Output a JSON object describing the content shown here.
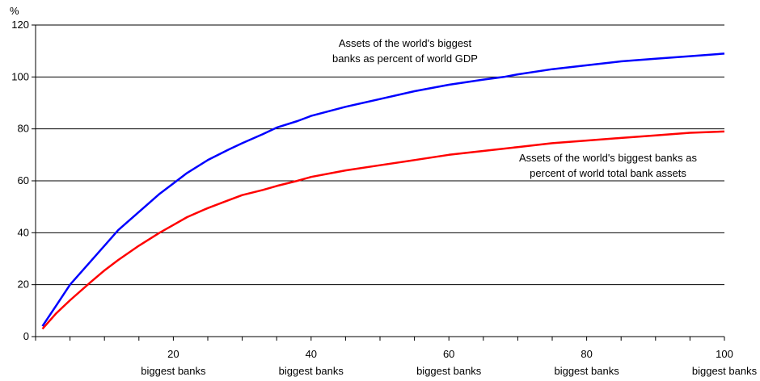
{
  "chart_data": {
    "type": "line",
    "title": "",
    "xlabel": "",
    "ylabel": "%",
    "xlim": [
      0,
      100
    ],
    "ylim": [
      0,
      120
    ],
    "grid": "horizontal",
    "legend": "inline annotations",
    "y_ticks": [
      "0",
      "20",
      "40",
      "60",
      "80",
      "100",
      "120"
    ],
    "x_ticks": [
      {
        "value": 20,
        "number": "20",
        "text": "biggest banks"
      },
      {
        "value": 40,
        "number": "40",
        "text": "biggest banks"
      },
      {
        "value": 60,
        "number": "60",
        "text": "biggest banks"
      },
      {
        "value": 80,
        "number": "80",
        "text": "biggest banks"
      },
      {
        "value": 100,
        "number": "100",
        "text": "biggest banks"
      }
    ],
    "series": [
      {
        "color": "#0000ff",
        "x": [
          1,
          3,
          5,
          8,
          10,
          12,
          15,
          18,
          20,
          22,
          25,
          28,
          30,
          33,
          35,
          38,
          40,
          45,
          50,
          55,
          60,
          65,
          68,
          70,
          75,
          80,
          85,
          90,
          95,
          100
        ],
        "y": [
          4,
          12,
          20,
          29,
          35,
          41,
          48,
          55,
          59,
          63,
          68,
          72,
          74.5,
          78,
          80.5,
          83,
          85,
          88.5,
          91.5,
          94.5,
          97,
          99,
          100,
          101,
          103,
          104.5,
          106,
          107,
          108,
          109
        ],
        "annotation": [
          "Assets of the world's biggest",
          "banks as percent of world GDP"
        ]
      },
      {
        "color": "#ff0000",
        "x": [
          1,
          3,
          5,
          8,
          10,
          12,
          15,
          18,
          20,
          22,
          25,
          28,
          30,
          33,
          35,
          38,
          40,
          45,
          50,
          55,
          60,
          65,
          70,
          75,
          80,
          85,
          90,
          95,
          100
        ],
        "y": [
          3,
          9,
          14,
          21,
          25.5,
          29.5,
          35,
          40,
          43,
          46,
          49.5,
          52.5,
          54.5,
          56.5,
          58,
          60,
          61.5,
          64,
          66,
          68,
          70,
          71.5,
          73,
          74.5,
          75.5,
          76.5,
          77.5,
          78.5,
          79
        ],
        "annotation": [
          "Assets of the world's biggest banks as",
          "percent of world total bank assets"
        ]
      }
    ]
  }
}
